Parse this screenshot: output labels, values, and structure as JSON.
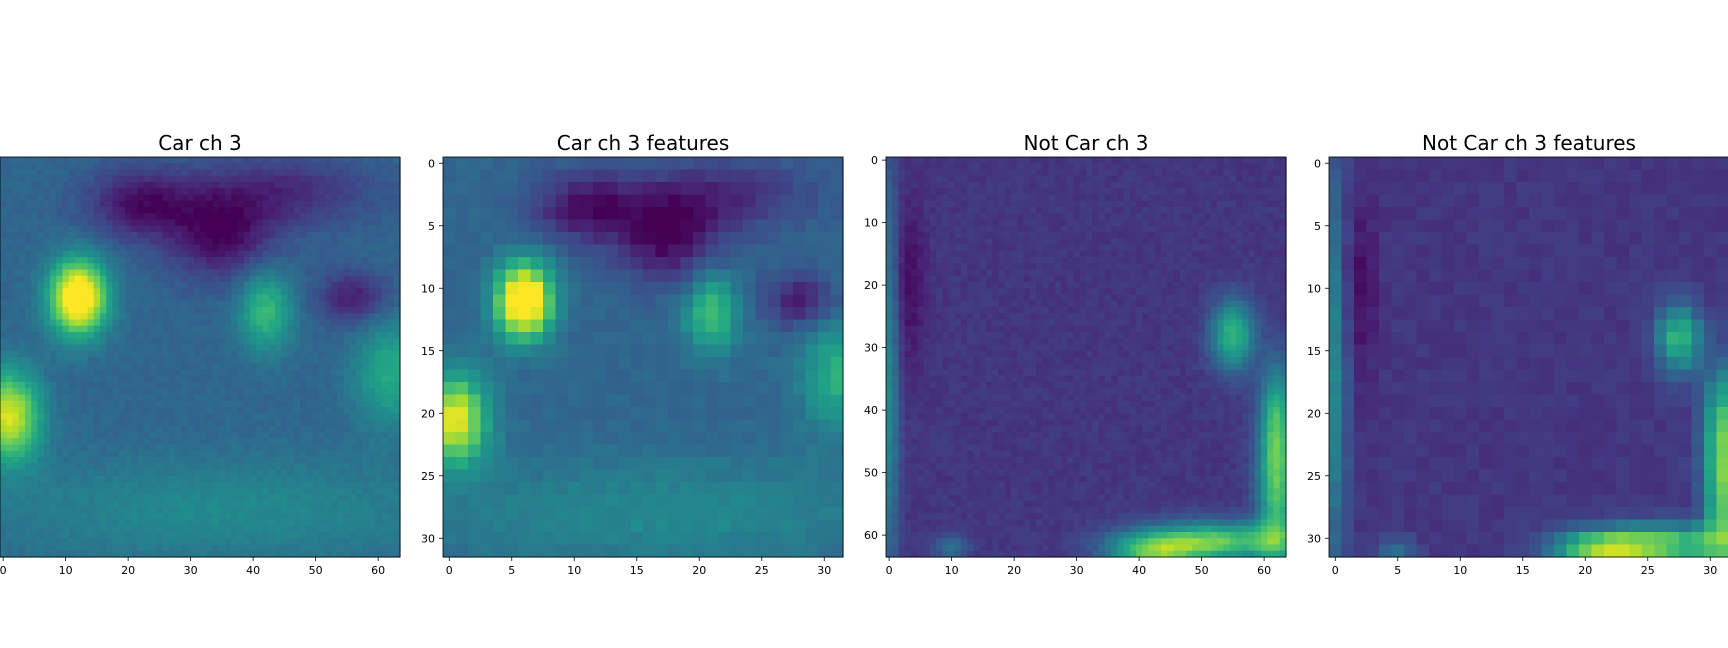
{
  "chart_data": [
    {
      "type": "heatmap",
      "title": "Car ch 3",
      "resolution": 64,
      "colormap": "viridis",
      "xticks": [
        0,
        10,
        20,
        30,
        40,
        50,
        60
      ],
      "yticks": [],
      "xlim": [
        -0.5,
        63.5
      ],
      "ylim": [
        63.5,
        -0.5
      ],
      "blobs": [
        {
          "x": 12,
          "y": 22,
          "sx": 3.2,
          "sy": 4.2,
          "amp": 0.85
        },
        {
          "x": 1,
          "y": 41,
          "sx": 3.5,
          "sy": 5,
          "amp": 0.62
        },
        {
          "x": 42,
          "y": 24,
          "sx": 3,
          "sy": 4.5,
          "amp": 0.35
        },
        {
          "x": 62,
          "y": 34,
          "sx": 4,
          "sy": 6,
          "amp": 0.28
        },
        {
          "x": 22,
          "y": 7,
          "sx": 6,
          "sy": 4,
          "amp": -0.28
        },
        {
          "x": 35,
          "y": 12,
          "sx": 6,
          "sy": 5,
          "amp": -0.3
        },
        {
          "x": 56,
          "y": 22,
          "sx": 4,
          "sy": 3,
          "amp": -0.25
        },
        {
          "x": 45,
          "y": 5,
          "sx": 10,
          "sy": 4,
          "amp": -0.2
        },
        {
          "x": 35,
          "y": 56,
          "sx": 28,
          "sy": 6,
          "amp": 0.14
        }
      ],
      "base": 0.33,
      "seed": 3
    },
    {
      "type": "heatmap",
      "title": "Car ch 3 features",
      "resolution": 32,
      "colormap": "viridis",
      "xticks": [
        0,
        5,
        10,
        15,
        20,
        25,
        30
      ],
      "yticks": [
        0,
        5,
        10,
        15,
        20,
        25,
        30
      ],
      "xlim": [
        -0.5,
        31.5
      ],
      "ylim": [
        31.5,
        -0.5
      ],
      "blobs": [
        {
          "x": 6,
          "y": 11,
          "sx": 1.6,
          "sy": 2.1,
          "amp": 0.88
        },
        {
          "x": 0.5,
          "y": 20.5,
          "sx": 1.8,
          "sy": 2.5,
          "amp": 0.65
        },
        {
          "x": 21,
          "y": 12,
          "sx": 1.5,
          "sy": 2.2,
          "amp": 0.38
        },
        {
          "x": 31,
          "y": 17,
          "sx": 2,
          "sy": 3,
          "amp": 0.3
        },
        {
          "x": 11,
          "y": 3.5,
          "sx": 3,
          "sy": 2,
          "amp": -0.28
        },
        {
          "x": 17.5,
          "y": 6,
          "sx": 3,
          "sy": 2.5,
          "amp": -0.3
        },
        {
          "x": 28,
          "y": 11,
          "sx": 2,
          "sy": 1.5,
          "amp": -0.25
        },
        {
          "x": 22,
          "y": 2.5,
          "sx": 5,
          "sy": 2,
          "amp": -0.2
        },
        {
          "x": 17,
          "y": 28,
          "sx": 14,
          "sy": 3,
          "amp": 0.14
        }
      ],
      "base": 0.33,
      "seed": 7
    },
    {
      "type": "heatmap",
      "title": "Not Car ch 3",
      "resolution": 64,
      "colormap": "viridis",
      "xticks": [
        0,
        10,
        20,
        30,
        40,
        50,
        60
      ],
      "yticks": [
        0,
        10,
        20,
        30,
        40,
        50,
        60
      ],
      "xlim": [
        -0.5,
        63.5
      ],
      "ylim": [
        63.5,
        -0.5
      ],
      "blobs": [
        {
          "x": 55,
          "y": 28,
          "sx": 2.5,
          "sy": 4,
          "amp": 0.5
        },
        {
          "x": 62,
          "y": 52,
          "sx": 2.2,
          "sy": 9,
          "amp": 0.55
        },
        {
          "x": 52,
          "y": 61,
          "sx": 9,
          "sy": 2.2,
          "amp": 0.6
        },
        {
          "x": 42,
          "y": 63,
          "sx": 5,
          "sy": 2,
          "amp": 0.45
        },
        {
          "x": 62,
          "y": 40,
          "sx": 1.8,
          "sy": 6,
          "amp": 0.3
        },
        {
          "x": 0,
          "y": 35,
          "sx": 1.2,
          "sy": 25,
          "amp": 0.3
        },
        {
          "x": 10,
          "y": 62,
          "sx": 2,
          "sy": 1.5,
          "amp": 0.2
        },
        {
          "x": 3,
          "y": 20,
          "sx": 2,
          "sy": 10,
          "amp": -0.12
        }
      ],
      "base": 0.16,
      "seed": 11
    },
    {
      "type": "heatmap",
      "title": "Not Car ch 3 features",
      "resolution": 32,
      "colormap": "viridis",
      "xticks": [
        0,
        5,
        10,
        15,
        20,
        25,
        30
      ],
      "yticks": [
        0,
        5,
        10,
        15,
        20,
        25,
        30
      ],
      "xlim": [
        -0.5,
        31.5
      ],
      "ylim": [
        31.5,
        -0.5
      ],
      "blobs": [
        {
          "x": 27.5,
          "y": 14,
          "sx": 1.3,
          "sy": 2,
          "amp": 0.5
        },
        {
          "x": 31,
          "y": 26,
          "sx": 1.1,
          "sy": 4.5,
          "amp": 0.58
        },
        {
          "x": 26,
          "y": 30.5,
          "sx": 4.5,
          "sy": 1.1,
          "amp": 0.6
        },
        {
          "x": 21,
          "y": 31,
          "sx": 2.5,
          "sy": 1,
          "amp": 0.45
        },
        {
          "x": 31,
          "y": 20,
          "sx": 1,
          "sy": 3,
          "amp": 0.3
        },
        {
          "x": 0,
          "y": 17,
          "sx": 0.7,
          "sy": 12,
          "amp": 0.3
        },
        {
          "x": 5,
          "y": 31,
          "sx": 1,
          "sy": 0.8,
          "amp": 0.2
        },
        {
          "x": 2,
          "y": 10,
          "sx": 1,
          "sy": 5,
          "amp": -0.12
        }
      ],
      "base": 0.16,
      "seed": 17
    }
  ]
}
